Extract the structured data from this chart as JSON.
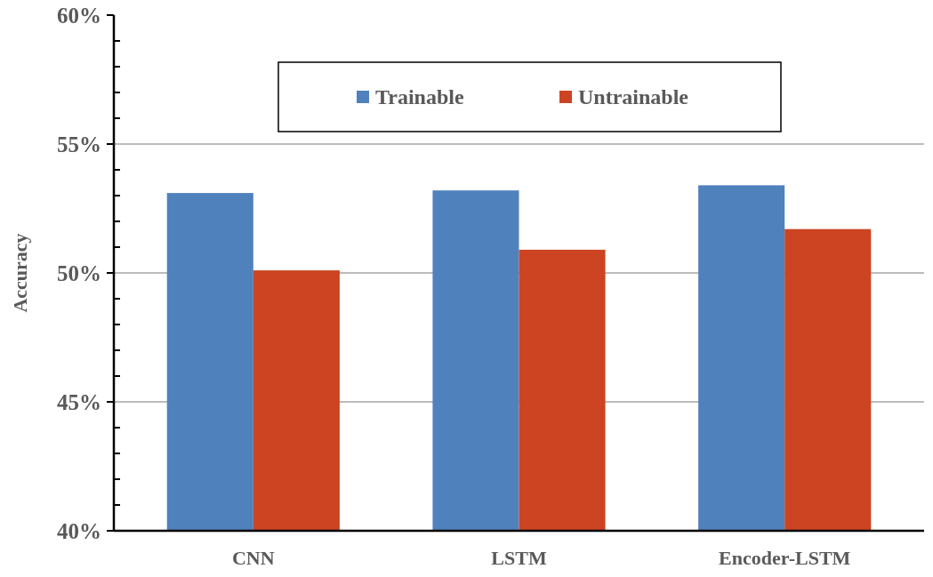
{
  "chart_data": {
    "type": "bar",
    "ylabel": "Accuracy",
    "categories": [
      "CNN",
      "LSTM",
      "Encoder-LSTM"
    ],
    "series": [
      {
        "name": "Trainable",
        "color": "#4f81bd",
        "values": [
          53.1,
          53.2,
          53.4
        ]
      },
      {
        "name": "Untrainable",
        "color": "#cc4422",
        "values": [
          50.1,
          50.9,
          51.7
        ]
      }
    ],
    "ylim": [
      40,
      60
    ],
    "yticks": [
      {
        "value": 40,
        "label": "40%"
      },
      {
        "value": 41,
        "label": null
      },
      {
        "value": 42,
        "label": null
      },
      {
        "value": 43,
        "label": null
      },
      {
        "value": 44,
        "label": null
      },
      {
        "value": 45,
        "label": "45%"
      },
      {
        "value": 46,
        "label": null
      },
      {
        "value": 47,
        "label": null
      },
      {
        "value": 48,
        "label": null
      },
      {
        "value": 49,
        "label": null
      },
      {
        "value": 50,
        "label": "50%"
      },
      {
        "value": 51,
        "label": null
      },
      {
        "value": 52,
        "label": null
      },
      {
        "value": 53,
        "label": null
      },
      {
        "value": 54,
        "label": null
      },
      {
        "value": 55,
        "label": "55%"
      },
      {
        "value": 56,
        "label": null
      },
      {
        "value": 57,
        "label": null
      },
      {
        "value": 58,
        "label": null
      },
      {
        "value": 59,
        "label": null
      },
      {
        "value": 60,
        "label": "60%"
      }
    ],
    "grid": "y",
    "legend": "top"
  }
}
